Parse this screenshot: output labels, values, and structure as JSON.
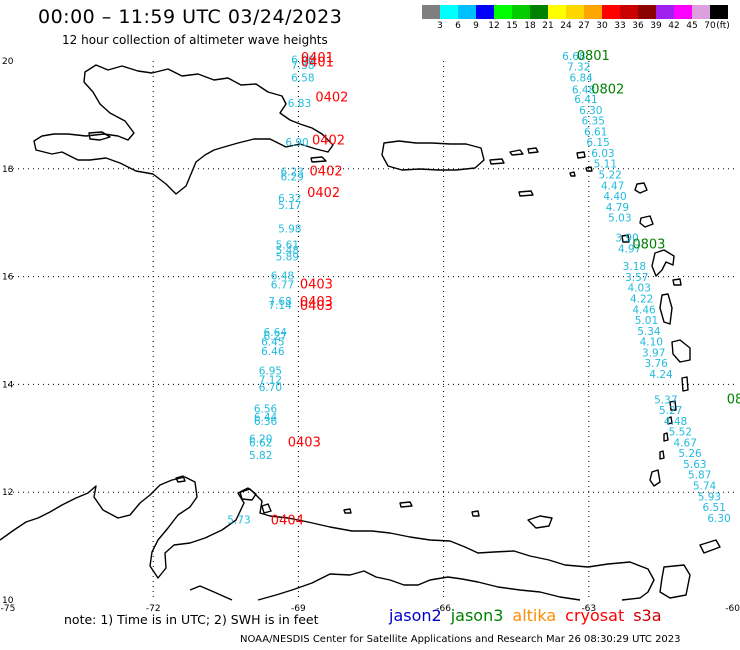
{
  "header": {
    "title": "00:00 – 11:59 UTC 03/24/2023",
    "subtitle": "12 hour collection of altimeter wave heights"
  },
  "colorbar": {
    "colors": [
      "#7f7f7f",
      "#00ffff",
      "#00bfff",
      "#0000ff",
      "#00ff00",
      "#00cc00",
      "#008000",
      "#ffff00",
      "#ffd700",
      "#ffa500",
      "#ff0000",
      "#cc0000",
      "#8b0000",
      "#a020f0",
      "#ff00ff",
      "#dda0dd",
      "#000000"
    ],
    "labels": [
      "3",
      "6",
      "9",
      "12",
      "15",
      "18",
      "21",
      "24",
      "27",
      "30",
      "33",
      "36",
      "39",
      "42",
      "45",
      "70",
      "(ft)"
    ]
  },
  "axes": {
    "lat_labels": [
      "20",
      "18",
      "16",
      "14",
      "12",
      "10"
    ],
    "lon_labels": [
      "-75",
      "-72",
      "-69",
      "-66",
      "-63",
      "-60"
    ]
  },
  "footer": {
    "note": "note: 1) Time is in UTC; 2) SWH is in feet",
    "satellites": [
      {
        "name": "jason2",
        "color": "#0000cc"
      },
      {
        "name": "jason3",
        "color": "#008000"
      },
      {
        "name": "altika",
        "color": "#ff8c00"
      },
      {
        "name": "cryosat",
        "color": "#ff0000"
      },
      {
        "name": "s3a",
        "color": "#cc0000"
      }
    ],
    "credit": "NOAA/NESDIS Center for Satellite Applications and Research   Mar 26 08:30:29 UTC 2023"
  },
  "tracks": [
    {
      "name": "west-track",
      "color": "#22bbdd",
      "points": [
        {
          "lon": -69.15,
          "lat": 19.95,
          "v": "6.96"
        },
        {
          "lon": -69.15,
          "lat": 19.85,
          "v": "7.38"
        },
        {
          "lon": -69.15,
          "lat": 19.62,
          "v": "6.58"
        },
        {
          "lon": -69.22,
          "lat": 19.15,
          "v": "6.83"
        },
        {
          "lon": -69.27,
          "lat": 18.42,
          "v": "6.90"
        },
        {
          "lon": -69.37,
          "lat": 17.88,
          "v": "6.23"
        },
        {
          "lon": -69.37,
          "lat": 17.78,
          "v": "6.29"
        },
        {
          "lon": -69.42,
          "lat": 17.38,
          "v": "6.32"
        },
        {
          "lon": -69.42,
          "lat": 17.25,
          "v": "5.17"
        },
        {
          "lon": -69.42,
          "lat": 16.82,
          "v": "5.98"
        },
        {
          "lon": -69.47,
          "lat": 16.52,
          "v": "5.61"
        },
        {
          "lon": -69.47,
          "lat": 16.42,
          "v": "5.48"
        },
        {
          "lon": -69.47,
          "lat": 16.3,
          "v": "5.89"
        },
        {
          "lon": -69.57,
          "lat": 15.95,
          "v": "6.48"
        },
        {
          "lon": -69.57,
          "lat": 15.78,
          "v": "6.77"
        },
        {
          "lon": -69.62,
          "lat": 15.47,
          "v": "7.68"
        },
        {
          "lon": -69.62,
          "lat": 15.4,
          "v": "7.14"
        },
        {
          "lon": -69.72,
          "lat": 14.9,
          "v": "6.64"
        },
        {
          "lon": -69.72,
          "lat": 14.82,
          "v": "6.27"
        },
        {
          "lon": -69.77,
          "lat": 14.72,
          "v": "6.45"
        },
        {
          "lon": -69.77,
          "lat": 14.55,
          "v": "6.46"
        },
        {
          "lon": -69.82,
          "lat": 14.18,
          "v": "6.95"
        },
        {
          "lon": -69.82,
          "lat": 14.02,
          "v": "7.12"
        },
        {
          "lon": -69.82,
          "lat": 13.88,
          "v": "6.70"
        },
        {
          "lon": -69.92,
          "lat": 13.48,
          "v": "6.56"
        },
        {
          "lon": -69.92,
          "lat": 13.32,
          "v": "6.44"
        },
        {
          "lon": -69.92,
          "lat": 13.25,
          "v": "6.36"
        },
        {
          "lon": -70.02,
          "lat": 12.92,
          "v": "6.20"
        },
        {
          "lon": -70.02,
          "lat": 12.85,
          "v": "6.62"
        },
        {
          "lon": -70.02,
          "lat": 12.62,
          "v": "5.82"
        },
        {
          "lon": -70.47,
          "lat": 11.42,
          "v": "5.73"
        }
      ]
    },
    {
      "name": "east-track",
      "color": "#22bbdd",
      "points": [
        {
          "lon": -63.55,
          "lat": 20.02,
          "v": "6.68"
        },
        {
          "lon": -63.45,
          "lat": 19.82,
          "v": "7.32"
        },
        {
          "lon": -63.4,
          "lat": 19.62,
          "v": "6.84"
        },
        {
          "lon": -63.35,
          "lat": 19.4,
          "v": "6.48"
        },
        {
          "lon": -63.3,
          "lat": 19.22,
          "v": "6.41"
        },
        {
          "lon": -63.2,
          "lat": 19.02,
          "v": "6.30"
        },
        {
          "lon": -63.15,
          "lat": 18.82,
          "v": "6.35"
        },
        {
          "lon": -63.1,
          "lat": 18.62,
          "v": "6.61"
        },
        {
          "lon": -63.05,
          "lat": 18.42,
          "v": "6.15"
        },
        {
          "lon": -62.95,
          "lat": 18.22,
          "v": "6.03"
        },
        {
          "lon": -62.9,
          "lat": 18.02,
          "v": "5.11"
        },
        {
          "lon": -62.8,
          "lat": 17.82,
          "v": "5.22"
        },
        {
          "lon": -62.75,
          "lat": 17.62,
          "v": "4.47"
        },
        {
          "lon": -62.7,
          "lat": 17.42,
          "v": "4.40"
        },
        {
          "lon": -62.65,
          "lat": 17.22,
          "v": "4.79"
        },
        {
          "lon": -62.6,
          "lat": 17.02,
          "v": "5.03"
        },
        {
          "lon": -62.45,
          "lat": 16.65,
          "v": "3.90"
        },
        {
          "lon": -62.4,
          "lat": 16.45,
          "v": "4.97"
        },
        {
          "lon": -62.3,
          "lat": 16.12,
          "v": "3.18"
        },
        {
          "lon": -62.25,
          "lat": 15.92,
          "v": "3.57"
        },
        {
          "lon": -62.2,
          "lat": 15.72,
          "v": "4.03"
        },
        {
          "lon": -62.15,
          "lat": 15.52,
          "v": "4.22"
        },
        {
          "lon": -62.1,
          "lat": 15.32,
          "v": "4.46"
        },
        {
          "lon": -62.05,
          "lat": 15.12,
          "v": "5.01"
        },
        {
          "lon": -62.0,
          "lat": 14.92,
          "v": "5.34"
        },
        {
          "lon": -61.95,
          "lat": 14.72,
          "v": "4.10"
        },
        {
          "lon": -61.9,
          "lat": 14.52,
          "v": "3.97"
        },
        {
          "lon": -61.85,
          "lat": 14.32,
          "v": "3.76"
        },
        {
          "lon": -61.75,
          "lat": 14.12,
          "v": "4.24"
        },
        {
          "lon": -61.65,
          "lat": 13.65,
          "v": "5.37"
        },
        {
          "lon": -61.55,
          "lat": 13.45,
          "v": "5.27"
        },
        {
          "lon": -61.45,
          "lat": 13.25,
          "v": "4.48"
        },
        {
          "lon": -61.35,
          "lat": 13.05,
          "v": "5.52"
        },
        {
          "lon": -61.25,
          "lat": 12.85,
          "v": "4.67"
        },
        {
          "lon": -61.15,
          "lat": 12.65,
          "v": "5.26"
        },
        {
          "lon": -61.05,
          "lat": 12.45,
          "v": "5.63"
        },
        {
          "lon": -60.95,
          "lat": 12.25,
          "v": "5.87"
        },
        {
          "lon": -60.85,
          "lat": 12.05,
          "v": "5.74"
        },
        {
          "lon": -60.75,
          "lat": 11.85,
          "v": "5.93"
        },
        {
          "lon": -60.65,
          "lat": 11.65,
          "v": "6.51"
        },
        {
          "lon": -60.55,
          "lat": 11.45,
          "v": "6.30"
        }
      ]
    }
  ],
  "time_labels": [
    {
      "lon": -68.95,
      "lat": 19.98,
      "text": "0401",
      "color": "#ff0000"
    },
    {
      "lon": -68.95,
      "lat": 19.9,
      "text": "0401",
      "color": "#ff0000"
    },
    {
      "lon": -68.65,
      "lat": 19.25,
      "text": "0402",
      "color": "#ff0000"
    },
    {
      "lon": -68.72,
      "lat": 18.45,
      "text": "0402",
      "color": "#ff0000"
    },
    {
      "lon": -68.77,
      "lat": 17.88,
      "text": "0402",
      "color": "#ff0000"
    },
    {
      "lon": -68.82,
      "lat": 17.48,
      "text": "0402",
      "color": "#ff0000"
    },
    {
      "lon": -68.97,
      "lat": 15.78,
      "text": "0403",
      "color": "#ff0000"
    },
    {
      "lon": -68.97,
      "lat": 15.45,
      "text": "0403",
      "color": "#ff0000"
    },
    {
      "lon": -68.97,
      "lat": 15.38,
      "text": "0403",
      "color": "#ff0000"
    },
    {
      "lon": -69.22,
      "lat": 12.85,
      "text": "0403",
      "color": "#ff0000"
    },
    {
      "lon": -69.57,
      "lat": 11.4,
      "text": "0404",
      "color": "#ff0000"
    },
    {
      "lon": -63.25,
      "lat": 20.02,
      "text": "0801",
      "color": "#008000"
    },
    {
      "lon": -62.95,
      "lat": 19.4,
      "text": "0802",
      "color": "#008000"
    },
    {
      "lon": -62.1,
      "lat": 16.52,
      "text": "0803",
      "color": "#008000"
    },
    {
      "lon": -60.15,
      "lat": 13.65,
      "text": "08",
      "color": "#008000"
    }
  ]
}
